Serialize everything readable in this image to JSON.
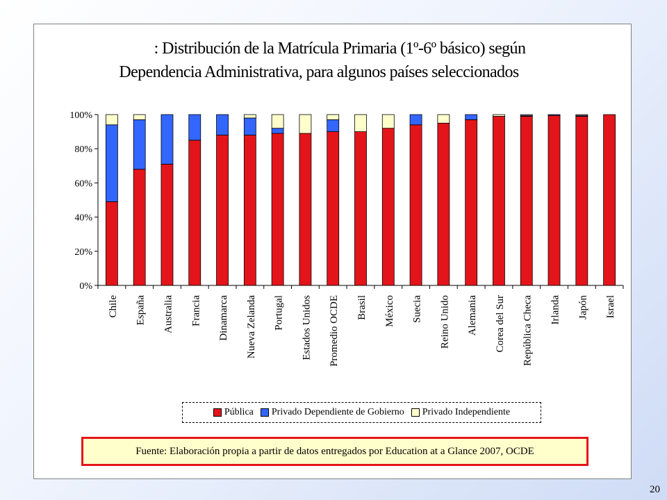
{
  "slide": {
    "page_number": "20"
  },
  "chart_data": {
    "type": "bar",
    "stacked": true,
    "title_line1": ": Distribución de la Matrícula Primaria (1º-6º básico) según",
    "title_line2": "Dependencia Administrativa, para algunos países seleccionados",
    "xlabel": "",
    "ylabel": "",
    "ylim": [
      0,
      100
    ],
    "yticks": [
      "0%",
      "20%",
      "40%",
      "60%",
      "80%",
      "100%"
    ],
    "categories": [
      "Chile",
      "España",
      "Australia",
      "Francia",
      "Dinamarca",
      "Nueva Zelanda",
      "Portugal",
      "Estados Unidos",
      "Promedio OCDE",
      "Brasil",
      "México",
      "Suecia",
      "Reino Unido",
      "Alemania",
      "Corea del Sur",
      "República Checa",
      "Irlanda",
      "Japón",
      "Israel"
    ],
    "series": [
      {
        "name": "Pública",
        "color": "#e4151a",
        "values": [
          49,
          68,
          71,
          85,
          88,
          88,
          89,
          89,
          90,
          90,
          92,
          94,
          95,
          97,
          99,
          99,
          99.5,
          99,
          100
        ]
      },
      {
        "name": "Privado Dependiente de Gobierno",
        "color": "#3366ff",
        "values": [
          45,
          29,
          29,
          15,
          12,
          10,
          3,
          0,
          7,
          0,
          0,
          6,
          0,
          3,
          0,
          0.5,
          0.5,
          0.5,
          0
        ]
      },
      {
        "name": "Privado Independiente",
        "color": "#ffffcc",
        "values": [
          6,
          3,
          0,
          0,
          0,
          2,
          8,
          11,
          3,
          10,
          8,
          0,
          5,
          0,
          1,
          0.5,
          0,
          0.5,
          0
        ]
      }
    ],
    "legend_position": "bottom",
    "grid": false
  },
  "source": "Fuente: Elaboración propia a partir de datos entregados por Education at a Glance 2007, OCDE"
}
